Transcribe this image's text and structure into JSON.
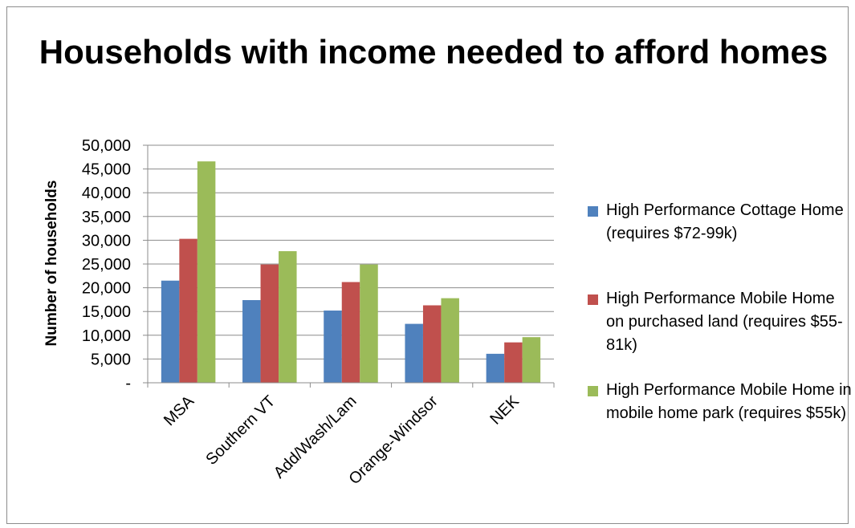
{
  "chart_data": {
    "type": "bar",
    "title": "Households with income needed to afford homes",
    "xlabel": "",
    "ylabel": "Number of households",
    "ylim": [
      0,
      50000
    ],
    "yticks": [
      0,
      5000,
      10000,
      15000,
      20000,
      25000,
      30000,
      35000,
      40000,
      45000,
      50000
    ],
    "ytick_labels": [
      "-",
      "5,000",
      "10,000",
      "15,000",
      "20,000",
      "25,000",
      "30,000",
      "35,000",
      "40,000",
      "45,000",
      "50,000"
    ],
    "grid": true,
    "legend_position": "right",
    "categories": [
      "MSA",
      "Southern VT",
      "Add/Wash/Lam",
      "Orange-Windsor",
      "NEK"
    ],
    "series": [
      {
        "name": "High Performance Cottage Home (requires $72-99k)",
        "color": "#4F81BD",
        "values": [
          21500,
          17400,
          15200,
          12400,
          6100
        ]
      },
      {
        "name": "High Performance Mobile Home on purchased land (requires $55-81k)",
        "color": "#C0504D",
        "values": [
          30300,
          24900,
          21200,
          16300,
          8500
        ]
      },
      {
        "name": "High Performance Mobile Home in mobile home park (requires $55k)",
        "color": "#9BBB59",
        "values": [
          46600,
          27700,
          24900,
          17800,
          9600
        ]
      }
    ]
  }
}
